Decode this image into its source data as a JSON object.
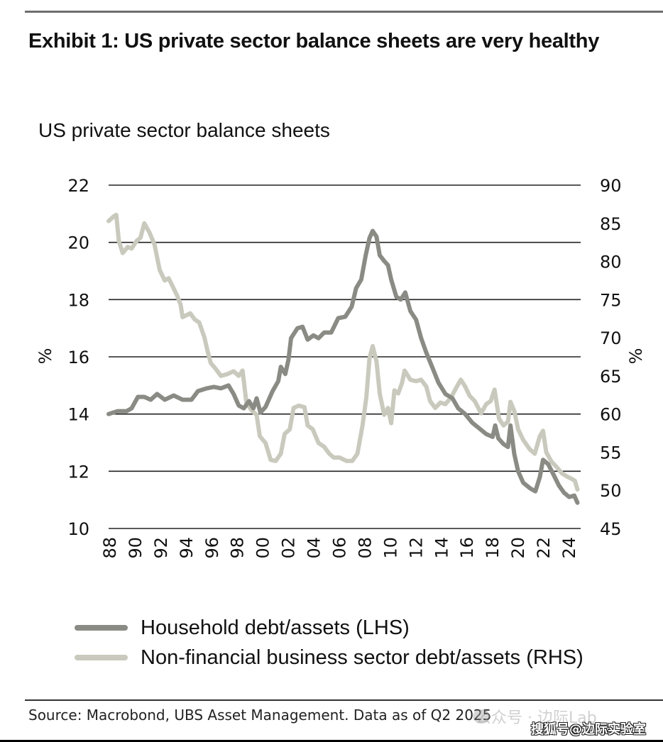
{
  "exhibit": {
    "title": "Exhibit 1: US private sector balance sheets are very healthy",
    "source": "Source: Macrobond, UBS Asset Management. Data as of Q2 2025",
    "watermarks": [
      "公众号 · 边际Lab",
      "搜狐号@边际实验室"
    ]
  },
  "colors": {
    "household": "#8a8b84",
    "business": "#c9cabd",
    "gridline": "#222222"
  },
  "chart_data": {
    "type": "line",
    "title": "US private sector balance sheets",
    "xlabel": "",
    "ylabel": "%",
    "y2label": "%",
    "xlim": [
      1988,
      2025
    ],
    "ylim": [
      10,
      22
    ],
    "y2lim": [
      45,
      90
    ],
    "yticks": [
      "22",
      "20",
      "18",
      "16",
      "14",
      "12",
      "10"
    ],
    "y2ticks": [
      "90",
      "85",
      "80",
      "75",
      "70",
      "65",
      "60",
      "55",
      "50",
      "45"
    ],
    "xticks": [
      {
        "year": 1988,
        "label": "88"
      },
      {
        "year": 1990,
        "label": "90"
      },
      {
        "year": 1992,
        "label": "92"
      },
      {
        "year": 1994,
        "label": "94"
      },
      {
        "year": 1996,
        "label": "96"
      },
      {
        "year": 1998,
        "label": "98"
      },
      {
        "year": 2000,
        "label": "00"
      },
      {
        "year": 2002,
        "label": "02"
      },
      {
        "year": 2004,
        "label": "04"
      },
      {
        "year": 2006,
        "label": "06"
      },
      {
        "year": 2008,
        "label": "08"
      },
      {
        "year": 2010,
        "label": "10"
      },
      {
        "year": 2012,
        "label": "12"
      },
      {
        "year": 2014,
        "label": "14"
      },
      {
        "year": 2016,
        "label": "16"
      },
      {
        "year": 2018,
        "label": "18"
      },
      {
        "year": 2020,
        "label": "20"
      },
      {
        "year": 2022,
        "label": "22"
      },
      {
        "year": 2024,
        "label": "24"
      }
    ],
    "grid": true,
    "legend_position": "bottom-left",
    "series": [
      {
        "name": "Household debt/assets (LHS)",
        "axis": "left",
        "points": [
          [
            1988.0,
            14.0
          ],
          [
            1988.7,
            14.1
          ],
          [
            1989.4,
            14.1
          ],
          [
            1989.8,
            14.2
          ],
          [
            1990.3,
            14.6
          ],
          [
            1990.8,
            14.6
          ],
          [
            1991.3,
            14.5
          ],
          [
            1991.8,
            14.7
          ],
          [
            1992.4,
            14.5
          ],
          [
            1993.1,
            14.65
          ],
          [
            1993.8,
            14.5
          ],
          [
            1994.5,
            14.5
          ],
          [
            1995.0,
            14.8
          ],
          [
            1995.7,
            14.9
          ],
          [
            1996.25,
            14.95
          ],
          [
            1996.8,
            14.9
          ],
          [
            1997.4,
            15.0
          ],
          [
            1997.8,
            14.7
          ],
          [
            1998.2,
            14.3
          ],
          [
            1998.6,
            14.2
          ],
          [
            1999.0,
            14.45
          ],
          [
            1999.35,
            14.2
          ],
          [
            1999.6,
            14.55
          ],
          [
            1999.9,
            14.05
          ],
          [
            2000.3,
            14.25
          ],
          [
            2000.85,
            14.8
          ],
          [
            2001.3,
            15.15
          ],
          [
            2001.5,
            15.65
          ],
          [
            2001.85,
            15.4
          ],
          [
            2002.1,
            15.9
          ],
          [
            2002.3,
            16.65
          ],
          [
            2002.8,
            17.0
          ],
          [
            2003.2,
            17.05
          ],
          [
            2003.6,
            16.6
          ],
          [
            2004.05,
            16.75
          ],
          [
            2004.45,
            16.65
          ],
          [
            2004.9,
            16.85
          ],
          [
            2005.45,
            16.85
          ],
          [
            2006.0,
            17.35
          ],
          [
            2006.55,
            17.4
          ],
          [
            2007.05,
            17.75
          ],
          [
            2007.4,
            18.4
          ],
          [
            2007.8,
            18.7
          ],
          [
            2008.15,
            19.55
          ],
          [
            2008.45,
            20.15
          ],
          [
            2008.7,
            20.4
          ],
          [
            2009.0,
            20.2
          ],
          [
            2009.25,
            19.55
          ],
          [
            2009.6,
            19.35
          ],
          [
            2009.9,
            19.2
          ],
          [
            2010.15,
            18.7
          ],
          [
            2010.55,
            18.1
          ],
          [
            2010.9,
            18.0
          ],
          [
            2011.25,
            18.25
          ],
          [
            2011.65,
            17.6
          ],
          [
            2012.1,
            17.3
          ],
          [
            2012.5,
            16.65
          ],
          [
            2012.9,
            16.15
          ],
          [
            2013.4,
            15.6
          ],
          [
            2013.85,
            15.1
          ],
          [
            2014.4,
            14.7
          ],
          [
            2014.95,
            14.55
          ],
          [
            2015.4,
            14.2
          ],
          [
            2015.95,
            14.0
          ],
          [
            2016.5,
            13.7
          ],
          [
            2017.05,
            13.5
          ],
          [
            2017.6,
            13.3
          ],
          [
            2018.1,
            13.2
          ],
          [
            2018.3,
            13.6
          ],
          [
            2018.55,
            13.15
          ],
          [
            2018.95,
            12.95
          ],
          [
            2019.3,
            12.85
          ],
          [
            2019.5,
            13.6
          ],
          [
            2019.8,
            12.6
          ],
          [
            2020.1,
            12.0
          ],
          [
            2020.5,
            11.6
          ],
          [
            2021.05,
            11.4
          ],
          [
            2021.45,
            11.3
          ],
          [
            2021.8,
            11.8
          ],
          [
            2022.05,
            12.4
          ],
          [
            2022.45,
            12.25
          ],
          [
            2022.85,
            11.9
          ],
          [
            2023.3,
            11.5
          ],
          [
            2023.7,
            11.25
          ],
          [
            2024.1,
            11.1
          ],
          [
            2024.5,
            11.15
          ],
          [
            2024.75,
            10.9
          ]
        ]
      },
      {
        "name": "Non-financial business sector debt/assets (RHS)",
        "axis": "right",
        "points": [
          [
            1988.0,
            85.3
          ],
          [
            1988.4,
            85.9
          ],
          [
            1988.6,
            86.1
          ],
          [
            1988.8,
            82.7
          ],
          [
            1989.1,
            81.1
          ],
          [
            1989.5,
            81.9
          ],
          [
            1989.8,
            81.7
          ],
          [
            1990.2,
            82.7
          ],
          [
            1990.5,
            83.1
          ],
          [
            1990.8,
            85.0
          ],
          [
            1991.2,
            83.8
          ],
          [
            1991.6,
            82.2
          ],
          [
            1992.0,
            78.9
          ],
          [
            1992.4,
            77.5
          ],
          [
            1992.7,
            77.8
          ],
          [
            1993.0,
            76.8
          ],
          [
            1993.4,
            75.4
          ],
          [
            1993.65,
            74.3
          ],
          [
            1993.8,
            72.7
          ],
          [
            1994.4,
            73.2
          ],
          [
            1994.75,
            72.4
          ],
          [
            1995.1,
            72.0
          ],
          [
            1995.5,
            70.1
          ],
          [
            1995.75,
            68.3
          ],
          [
            1996.0,
            66.7
          ],
          [
            1996.4,
            65.9
          ],
          [
            1996.8,
            65.0
          ],
          [
            1997.25,
            65.2
          ],
          [
            1997.8,
            65.6
          ],
          [
            1998.2,
            65.0
          ],
          [
            1998.5,
            65.7
          ],
          [
            1998.8,
            61.5
          ],
          [
            1999.2,
            60.5
          ],
          [
            1999.6,
            59.9
          ],
          [
            1999.85,
            57.1
          ],
          [
            2000.3,
            56.2
          ],
          [
            2000.7,
            54.0
          ],
          [
            2001.1,
            53.85
          ],
          [
            2001.5,
            54.8
          ],
          [
            2001.8,
            57.4
          ],
          [
            2002.2,
            58.0
          ],
          [
            2002.5,
            60.8
          ],
          [
            2002.9,
            61.1
          ],
          [
            2003.35,
            60.9
          ],
          [
            2003.6,
            58.5
          ],
          [
            2004.0,
            58.0
          ],
          [
            2004.45,
            56.2
          ],
          [
            2004.9,
            55.7
          ],
          [
            2005.3,
            54.8
          ],
          [
            2005.65,
            54.3
          ],
          [
            2006.1,
            54.3
          ],
          [
            2006.65,
            53.85
          ],
          [
            2007.1,
            53.85
          ],
          [
            2007.5,
            54.8
          ],
          [
            2007.9,
            58.5
          ],
          [
            2008.2,
            62.2
          ],
          [
            2008.45,
            67.3
          ],
          [
            2008.7,
            68.9
          ],
          [
            2009.0,
            66.9
          ],
          [
            2009.25,
            62.7
          ],
          [
            2009.6,
            59.9
          ],
          [
            2009.9,
            60.8
          ],
          [
            2010.15,
            58.8
          ],
          [
            2010.4,
            63.1
          ],
          [
            2010.7,
            62.7
          ],
          [
            2011.0,
            64.1
          ],
          [
            2011.2,
            65.7
          ],
          [
            2011.65,
            64.5
          ],
          [
            2012.1,
            64.3
          ],
          [
            2012.5,
            64.5
          ],
          [
            2012.9,
            63.6
          ],
          [
            2013.2,
            61.7
          ],
          [
            2013.6,
            60.8
          ],
          [
            2014.0,
            61.5
          ],
          [
            2014.4,
            61.3
          ],
          [
            2014.85,
            62.2
          ],
          [
            2015.2,
            63.3
          ],
          [
            2015.6,
            64.5
          ],
          [
            2015.95,
            63.6
          ],
          [
            2016.3,
            62.4
          ],
          [
            2016.7,
            61.7
          ],
          [
            2017.2,
            60.1
          ],
          [
            2017.6,
            61.3
          ],
          [
            2017.95,
            61.7
          ],
          [
            2018.25,
            63.2
          ],
          [
            2018.6,
            59.4
          ],
          [
            2018.95,
            58.5
          ],
          [
            2019.3,
            59.0
          ],
          [
            2019.5,
            61.6
          ],
          [
            2019.8,
            60.4
          ],
          [
            2020.1,
            58.0
          ],
          [
            2020.5,
            56.6
          ],
          [
            2021.0,
            55.4
          ],
          [
            2021.4,
            54.8
          ],
          [
            2021.8,
            57.1
          ],
          [
            2022.05,
            57.8
          ],
          [
            2022.3,
            55.0
          ],
          [
            2022.7,
            53.8
          ],
          [
            2023.2,
            52.9
          ],
          [
            2023.55,
            52.2
          ],
          [
            2023.95,
            51.8
          ],
          [
            2024.3,
            51.5
          ],
          [
            2024.55,
            51.25
          ],
          [
            2024.75,
            50.1
          ]
        ]
      }
    ]
  }
}
